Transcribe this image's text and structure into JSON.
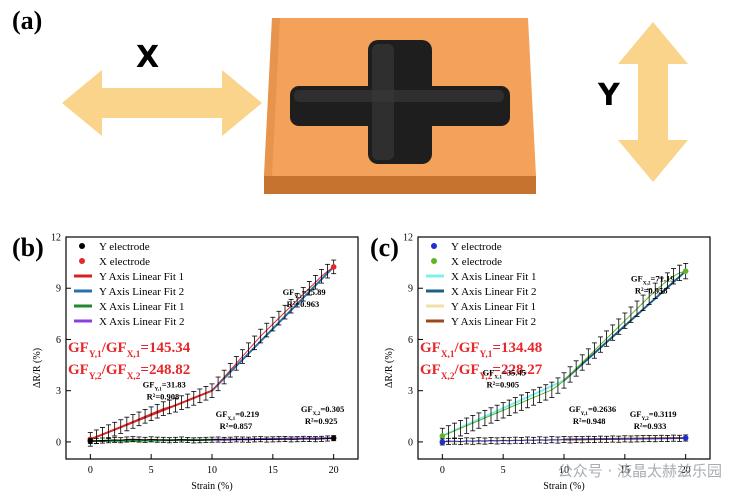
{
  "figure": {
    "panel_a_label": "(a)",
    "panel_b_label": "(b)",
    "panel_c_label": "(c)",
    "x_axis_letter": "X",
    "y_axis_letter": "Y",
    "watermark": "公众号 · 液晶太赫兹乐园",
    "colors": {
      "arrow": "#f9d48a",
      "plate": "#f4a259",
      "plate_dark": "#c5732f",
      "cross": "#1e1e1e",
      "annotation_red": "#e8272b"
    }
  },
  "chart_data": [
    {
      "id": "b",
      "type": "line",
      "xlabel": "Strain (%)",
      "ylabel": "ΔR/R (%)",
      "xlim": [
        -2,
        22
      ],
      "ylim": [
        -1,
        12
      ],
      "xticks": [
        0,
        5,
        10,
        15,
        20
      ],
      "yticks": [
        0,
        3,
        6,
        9,
        12
      ],
      "legend": {
        "placement": "top-left",
        "entries": [
          {
            "label": "Y electrode",
            "kind": "dot",
            "color": "#000000"
          },
          {
            "label": "X electrode",
            "kind": "dot",
            "color": "#e8272b"
          },
          {
            "label": "Y Axis Linear Fit 1",
            "kind": "line",
            "color": "#d42020"
          },
          {
            "label": "Y Axis Linear Fit 2",
            "kind": "line",
            "color": "#2a6fb0"
          },
          {
            "label": "X Axis Linear Fit 1",
            "kind": "line",
            "color": "#1f8a2e"
          },
          {
            "label": "X Axis Linear Fit 2",
            "kind": "line",
            "color": "#8b3fe0"
          }
        ]
      },
      "series": [
        {
          "name": "X electrode",
          "color": "#e8272b",
          "x": [
            0,
            0.5,
            1,
            1.5,
            2,
            2.5,
            3,
            3.5,
            4,
            4.5,
            5,
            5.5,
            6,
            6.5,
            7,
            7.5,
            8,
            8.5,
            9,
            9.5,
            10,
            10.5,
            11,
            11.5,
            12,
            12.5,
            13,
            13.5,
            14,
            14.5,
            15,
            15.5,
            16,
            16.5,
            17,
            17.5,
            18,
            18.5,
            19,
            19.5,
            20
          ],
          "y": [
            0.15,
            0.3,
            0.45,
            0.6,
            0.75,
            0.9,
            1.05,
            1.2,
            1.35,
            1.5,
            1.65,
            1.8,
            1.95,
            2.05,
            2.15,
            2.3,
            2.4,
            2.55,
            2.7,
            2.85,
            3.0,
            3.4,
            3.8,
            4.2,
            4.6,
            5.0,
            5.4,
            5.8,
            6.2,
            6.55,
            6.9,
            7.25,
            7.6,
            7.95,
            8.3,
            8.65,
            9.0,
            9.35,
            9.7,
            10.0,
            10.25
          ],
          "err": 0.4
        },
        {
          "name": "Y electrode",
          "color": "#000000",
          "x": [
            0,
            0.5,
            1,
            1.5,
            2,
            2.5,
            3,
            3.5,
            4,
            4.5,
            5,
            5.5,
            6,
            6.5,
            7,
            7.5,
            8,
            8.5,
            9,
            9.5,
            10,
            10.5,
            11,
            11.5,
            12,
            12.5,
            13,
            13.5,
            14,
            14.5,
            15,
            15.5,
            16,
            16.5,
            17,
            17.5,
            18,
            18.5,
            19,
            19.5,
            20
          ],
          "y": [
            0.05,
            0.06,
            0.08,
            0.1,
            0.12,
            0.1,
            0.14,
            0.16,
            0.14,
            0.12,
            0.15,
            0.13,
            0.12,
            0.1,
            0.12,
            0.14,
            0.11,
            0.09,
            0.1,
            0.12,
            0.13,
            0.14,
            0.12,
            0.13,
            0.15,
            0.14,
            0.13,
            0.15,
            0.16,
            0.14,
            0.15,
            0.16,
            0.17,
            0.15,
            0.16,
            0.18,
            0.17,
            0.16,
            0.18,
            0.2,
            0.22
          ],
          "err": 0.15
        }
      ],
      "fits": [
        {
          "name": "Y Axis Linear Fit 1",
          "color": "#d42020",
          "x": [
            0,
            10
          ],
          "y": [
            0.15,
            3.0
          ]
        },
        {
          "name": "Y Axis Linear Fit 2",
          "color": "#2a6fb0",
          "x": [
            10,
            20
          ],
          "y": [
            3.0,
            10.25
          ]
        },
        {
          "name": "X Axis Linear Fit 1",
          "color": "#1f8a2e",
          "x": [
            0,
            10
          ],
          "y": [
            0.05,
            0.13
          ]
        },
        {
          "name": "X Axis Linear Fit 2",
          "color": "#8b3fe0",
          "x": [
            10,
            20
          ],
          "y": [
            0.13,
            0.22
          ]
        }
      ],
      "annotations": [
        {
          "text": "GFY,2=75.89",
          "sub": "R²=0.963",
          "x": 15.8,
          "y": 8.6
        },
        {
          "text": "GFY,1=31.83",
          "sub": "R²=0.908",
          "x": 4.3,
          "y": 3.2
        },
        {
          "text": "GFX,1=0.219",
          "sub": "R²=0.857",
          "x": 10.3,
          "y": 1.45
        },
        {
          "text": "GFX,2=0.305",
          "sub": "R²=0.925",
          "x": 17.3,
          "y": 1.75
        }
      ],
      "ratios": [
        "GFY,1/GFX,1=145.34",
        "GFY,2/GFX,2=248.82"
      ]
    },
    {
      "id": "c",
      "type": "line",
      "xlabel": "Strain (%)",
      "ylabel": "ΔR/R (%)",
      "xlim": [
        -2,
        22
      ],
      "ylim": [
        -1,
        12
      ],
      "xticks": [
        0,
        5,
        10,
        15,
        20
      ],
      "yticks": [
        0,
        3,
        6,
        9,
        12
      ],
      "legend": {
        "placement": "top-left",
        "entries": [
          {
            "label": "Y electrode",
            "kind": "dot",
            "color": "#1f2fd0"
          },
          {
            "label": "X electrode",
            "kind": "dot",
            "color": "#5fb52a"
          },
          {
            "label": "X Axis Linear Fit 1",
            "kind": "line",
            "color": "#7ff0f0"
          },
          {
            "label": "X Axis Linear Fit 2",
            "kind": "line",
            "color": "#1d5f86"
          },
          {
            "label": "Y Axis Linear Fit 1",
            "kind": "line",
            "color": "#f0e0a8"
          },
          {
            "label": "Y Axis Linear Fit 2",
            "kind": "line",
            "color": "#9a4a1a"
          }
        ]
      },
      "series": [
        {
          "name": "X electrode",
          "color": "#5fb52a",
          "x": [
            0,
            0.5,
            1,
            1.5,
            2,
            2.5,
            3,
            3.5,
            4,
            4.5,
            5,
            5.5,
            6,
            6.5,
            7,
            7.5,
            8,
            8.5,
            9,
            9.5,
            10,
            10.5,
            11,
            11.5,
            12,
            12.5,
            13,
            13.5,
            14,
            14.5,
            15,
            15.5,
            16,
            16.5,
            17,
            17.5,
            18,
            18.5,
            19,
            19.5,
            20
          ],
          "y": [
            0.35,
            0.5,
            0.65,
            0.8,
            0.95,
            1.1,
            1.25,
            1.4,
            1.55,
            1.7,
            1.85,
            2.0,
            2.15,
            2.3,
            2.45,
            2.6,
            2.75,
            2.9,
            3.05,
            3.3,
            3.6,
            3.95,
            4.3,
            4.65,
            5.0,
            5.35,
            5.7,
            6.05,
            6.4,
            6.75,
            7.1,
            7.45,
            7.8,
            8.15,
            8.5,
            8.85,
            9.15,
            9.45,
            9.7,
            9.9,
            10.0
          ],
          "err": 0.45
        },
        {
          "name": "Y electrode",
          "color": "#1f2fd0",
          "x": [
            0,
            0.5,
            1,
            1.5,
            2,
            2.5,
            3,
            3.5,
            4,
            4.5,
            5,
            5.5,
            6,
            6.5,
            7,
            7.5,
            8,
            8.5,
            9,
            9.5,
            10,
            10.5,
            11,
            11.5,
            12,
            12.5,
            13,
            13.5,
            14,
            14.5,
            15,
            15.5,
            16,
            16.5,
            17,
            17.5,
            18,
            18.5,
            19,
            19.5,
            20
          ],
          "y": [
            0.0,
            0.03,
            0.05,
            0.02,
            0.06,
            0.04,
            0.07,
            0.05,
            0.08,
            0.06,
            0.09,
            0.07,
            0.1,
            0.08,
            0.11,
            0.09,
            0.12,
            0.1,
            0.13,
            0.11,
            0.14,
            0.12,
            0.14,
            0.13,
            0.15,
            0.14,
            0.16,
            0.15,
            0.17,
            0.16,
            0.18,
            0.17,
            0.18,
            0.19,
            0.2,
            0.19,
            0.21,
            0.2,
            0.22,
            0.21,
            0.23
          ],
          "err": 0.18
        }
      ],
      "fits": [
        {
          "name": "X Axis Linear Fit 1",
          "color": "#7ff0f0",
          "x": [
            0,
            10
          ],
          "y": [
            0.35,
            3.6
          ]
        },
        {
          "name": "X Axis Linear Fit 2",
          "color": "#1d5f86",
          "x": [
            10,
            20
          ],
          "y": [
            3.6,
            10.0
          ]
        },
        {
          "name": "Y Axis Linear Fit 1",
          "color": "#f0e0a8",
          "x": [
            0,
            10
          ],
          "y": [
            0.0,
            0.14
          ]
        },
        {
          "name": "Y Axis Linear Fit 2",
          "color": "#9a4a1a",
          "x": [
            10,
            20
          ],
          "y": [
            0.14,
            0.23
          ]
        }
      ],
      "annotations": [
        {
          "text": "GFX,2=71.19",
          "sub": "R²=0.958",
          "x": 15.5,
          "y": 9.4
        },
        {
          "text": "GFX,1=35.45",
          "sub": "R²=0.905",
          "x": 3.3,
          "y": 3.9
        },
        {
          "text": "GFY,1=0.2636",
          "sub": "R²=0.948",
          "x": 10.4,
          "y": 1.75
        },
        {
          "text": "GFY,2=0.3119",
          "sub": "R²=0.933",
          "x": 15.4,
          "y": 1.45
        }
      ],
      "ratios": [
        "GFX,1/GFY,1=134.48",
        "GFX,2/GFY,2=228.27"
      ]
    }
  ]
}
